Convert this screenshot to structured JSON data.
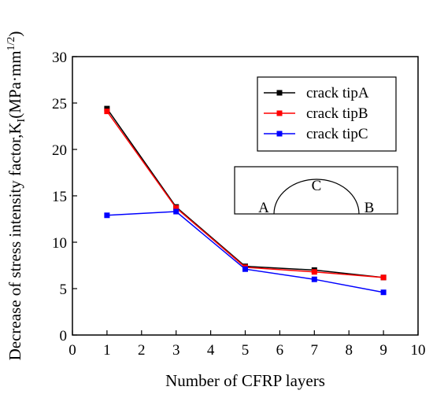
{
  "chart_data": {
    "type": "line",
    "title": "",
    "xlabel": "Number of CFRP layers",
    "ylabel": "Decrease of stress intensity factor,K",
    "ylabel_sub": "I",
    "ylabel_unit": "(MPa·mm",
    "ylabel_sup": "1/2",
    "ylabel_close": ")",
    "xlim": [
      0,
      10
    ],
    "ylim": [
      0,
      30
    ],
    "xticks": [
      0,
      1,
      2,
      3,
      4,
      5,
      6,
      7,
      8,
      9,
      10
    ],
    "yticks": [
      0,
      5,
      10,
      15,
      20,
      25,
      30
    ],
    "grid": false,
    "legend_position": "top-right",
    "series": [
      {
        "name": "crack tipA",
        "color": "#000000",
        "x": [
          1,
          3,
          5,
          7,
          9
        ],
        "y": [
          24.4,
          13.8,
          7.4,
          7.0,
          6.2
        ]
      },
      {
        "name": "crack tipB",
        "color": "#ff0000",
        "x": [
          1,
          3,
          5,
          7,
          9
        ],
        "y": [
          24.1,
          13.7,
          7.3,
          6.8,
          6.2
        ]
      },
      {
        "name": "crack tipC",
        "color": "#0000ff",
        "x": [
          1,
          3,
          5,
          7,
          9
        ],
        "y": [
          12.9,
          13.3,
          7.1,
          6.0,
          4.6
        ]
      }
    ],
    "inset": {
      "labels": [
        "A",
        "C",
        "B"
      ]
    }
  }
}
